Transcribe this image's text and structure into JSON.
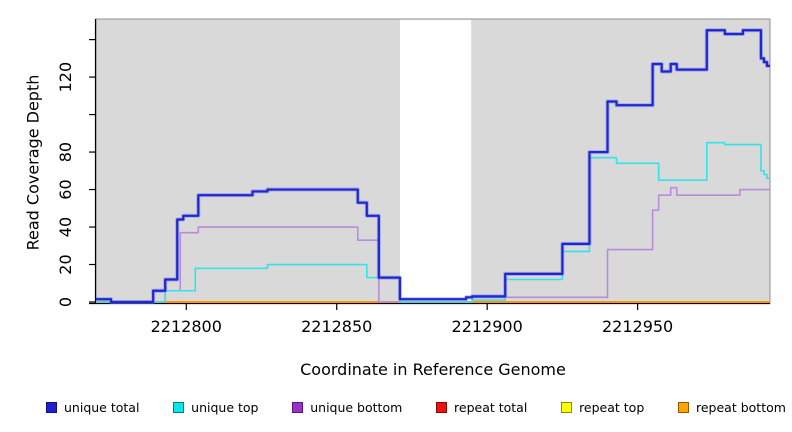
{
  "chart_data": {
    "type": "line",
    "subtype": "step-after-coverage-plot",
    "xlabel": "Coordinate in Reference Genome",
    "ylabel": "Read Coverage Depth",
    "xlim": [
      2212770,
      2212994
    ],
    "ylim": [
      0,
      151
    ],
    "panel_background": "#d9d9d9",
    "panel_border_color": "#8f8f8f",
    "axis_color": "#000000",
    "uncovered_region": {
      "x_start": 2212871,
      "x_end": 2212894.7,
      "color": "#ffffff"
    },
    "x_ticks": [
      {
        "value": 2212800,
        "label": "2212800"
      },
      {
        "value": 2212850,
        "label": "2212850"
      },
      {
        "value": 2212900,
        "label": "2212900"
      },
      {
        "value": 2212950,
        "label": "2212950"
      }
    ],
    "y_ticks": [
      {
        "value": 0,
        "label": "0"
      },
      {
        "value": 20,
        "label": "20"
      },
      {
        "value": 40,
        "label": "40"
      },
      {
        "value": 60,
        "label": "60"
      },
      {
        "value": 80,
        "label": "80"
      },
      {
        "value": 100,
        "label": ""
      },
      {
        "value": 120,
        "label": "120"
      },
      {
        "value": 140,
        "label": ""
      }
    ],
    "series": [
      {
        "name": "repeat total",
        "color": "#d23b50",
        "width": 1.6,
        "skip_uncovered": false,
        "step_points": [
          [
            2212770,
            0
          ]
        ]
      },
      {
        "name": "repeat top",
        "color": "#ffee00",
        "width": 1.6,
        "skip_uncovered": false,
        "step_points": [
          [
            2212770,
            0
          ]
        ]
      },
      {
        "name": "repeat bottom",
        "color": "#ff9505",
        "width": 2.0,
        "skip_uncovered": true,
        "step_points": [
          [
            2212770,
            0
          ]
        ]
      },
      {
        "name": "unique bottom",
        "color": "#b98bdb",
        "width": 1.6,
        "skip_uncovered": false,
        "step_points": [
          [
            2212770,
            0
          ],
          [
            2212793,
            6
          ],
          [
            2212798,
            37
          ],
          [
            2212804,
            40
          ],
          [
            2212857,
            33
          ],
          [
            2212864,
            0
          ],
          [
            2212895,
            2.5
          ],
          [
            2212940,
            28
          ],
          [
            2212955,
            49
          ],
          [
            2212957,
            57
          ],
          [
            2212961,
            61
          ],
          [
            2212963,
            57
          ],
          [
            2212984,
            60
          ]
        ]
      },
      {
        "name": "unique top",
        "color": "#35e2e8",
        "width": 1.6,
        "skip_uncovered": false,
        "step_points": [
          [
            2212770,
            0
          ],
          [
            2212793,
            6
          ],
          [
            2212803,
            18
          ],
          [
            2212827,
            20
          ],
          [
            2212860,
            13
          ],
          [
            2212871,
            0
          ],
          [
            2212895,
            1
          ],
          [
            2212906,
            12
          ],
          [
            2212925,
            27
          ],
          [
            2212934,
            77
          ],
          [
            2212943,
            74
          ],
          [
            2212957,
            65
          ],
          [
            2212973,
            85
          ],
          [
            2212979,
            84
          ],
          [
            2212991,
            70
          ],
          [
            2212992,
            68
          ],
          [
            2212993,
            66
          ]
        ]
      },
      {
        "name": "unique total",
        "color": "#2424d0",
        "halo": "rgba(105,135,240,0.55)",
        "width": 2.2,
        "skip_uncovered": false,
        "step_points": [
          [
            2212770,
            1.5
          ],
          [
            2212775,
            0
          ],
          [
            2212789,
            6
          ],
          [
            2212793,
            12
          ],
          [
            2212797,
            44
          ],
          [
            2212799,
            46
          ],
          [
            2212804,
            57
          ],
          [
            2212822,
            59
          ],
          [
            2212827,
            60
          ],
          [
            2212857,
            53
          ],
          [
            2212860,
            46
          ],
          [
            2212864,
            13
          ],
          [
            2212871,
            1.5
          ],
          [
            2212893,
            2.5
          ],
          [
            2212895,
            3
          ],
          [
            2212906,
            15
          ],
          [
            2212925,
            31
          ],
          [
            2212934,
            80
          ],
          [
            2212940,
            107
          ],
          [
            2212943,
            105
          ],
          [
            2212955,
            127
          ],
          [
            2212958,
            123
          ],
          [
            2212961,
            127
          ],
          [
            2212963,
            124
          ],
          [
            2212973,
            145
          ],
          [
            2212979,
            143
          ],
          [
            2212985,
            145
          ],
          [
            2212991,
            130
          ],
          [
            2212992,
            128
          ],
          [
            2212993,
            126
          ]
        ]
      }
    ],
    "legend": {
      "position": "bottom",
      "items": [
        {
          "label": "unique total",
          "color": "#1f1fd4"
        },
        {
          "label": "unique top",
          "color": "#0ae6ea"
        },
        {
          "label": "unique bottom",
          "color": "#9a2fd2"
        },
        {
          "label": "repeat total",
          "color": "#ee1111"
        },
        {
          "label": "repeat top",
          "color": "#ffff00"
        },
        {
          "label": "repeat bottom",
          "color": "#ffa308"
        }
      ]
    }
  }
}
